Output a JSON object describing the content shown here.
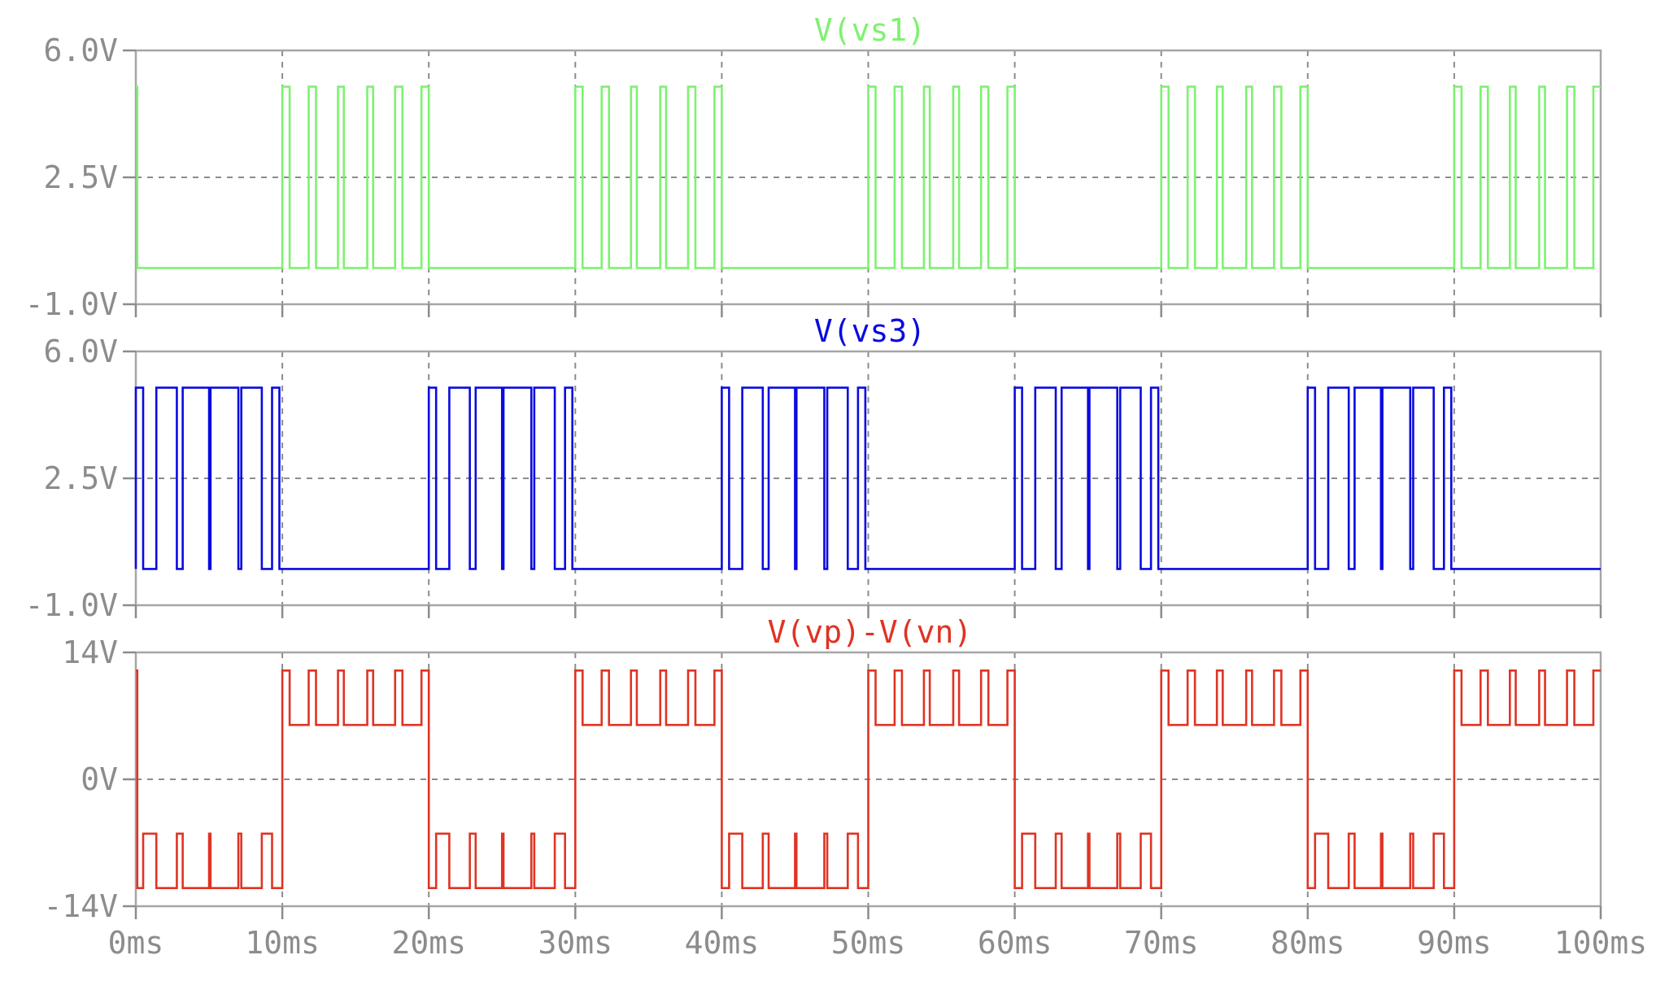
{
  "chart_data": [
    {
      "type": "line",
      "title": "V(vs1)",
      "color": "#7df270",
      "x_ticks": [
        "0ms",
        "10ms",
        "20ms",
        "30ms",
        "40ms",
        "50ms",
        "60ms",
        "70ms",
        "80ms",
        "90ms",
        "100ms"
      ],
      "xlim": [
        0,
        100
      ],
      "ylim": [
        -1.0,
        6.0
      ],
      "y_ticks": [
        {
          "value": 6.0,
          "label": "6.0V"
        },
        {
          "value": 2.5,
          "label": "2.5V"
        },
        {
          "value": -1.0,
          "label": "-1.0V"
        }
      ],
      "grid": true,
      "levels": {
        "low": 0,
        "high": 5
      },
      "pattern": {
        "period_ms": 20,
        "high_from_ms": 10,
        "high_to_ms": 20,
        "pulses_ms": [
          [
            0.0,
            0.5
          ],
          [
            1.8,
            2.3
          ],
          [
            3.8,
            4.2
          ],
          [
            5.8,
            6.2
          ],
          [
            7.7,
            8.2
          ],
          [
            9.5,
            10.0
          ]
        ]
      },
      "initial_spike_ms": [
        0.0,
        0.1
      ]
    },
    {
      "type": "line",
      "title": "V(vs3)",
      "color": "#0a0ae0",
      "x_ticks": [
        "0ms",
        "10ms",
        "20ms",
        "30ms",
        "40ms",
        "50ms",
        "60ms",
        "70ms",
        "80ms",
        "90ms",
        "100ms"
      ],
      "xlim": [
        0,
        100
      ],
      "ylim": [
        -1.0,
        6.0
      ],
      "y_ticks": [
        {
          "value": 6.0,
          "label": "6.0V"
        },
        {
          "value": 2.5,
          "label": "2.5V"
        },
        {
          "value": -1.0,
          "label": "-1.0V"
        }
      ],
      "grid": true,
      "levels": {
        "low": 0,
        "high": 5
      },
      "pattern": {
        "period_ms": 20,
        "high_from_ms": 0,
        "high_to_ms": 10,
        "pulses_ms": [
          [
            0.0,
            0.5
          ],
          [
            1.4,
            2.8
          ],
          [
            3.2,
            5.0
          ],
          [
            5.1,
            7.0
          ],
          [
            7.2,
            8.6
          ],
          [
            9.3,
            9.8
          ]
        ]
      }
    },
    {
      "type": "line",
      "title": "V(vp)-V(vn)",
      "color": "#e03323",
      "x_ticks": [
        "0ms",
        "10ms",
        "20ms",
        "30ms",
        "40ms",
        "50ms",
        "60ms",
        "70ms",
        "80ms",
        "90ms",
        "100ms"
      ],
      "xlim": [
        0,
        100
      ],
      "ylim": [
        -14,
        14
      ],
      "y_ticks": [
        {
          "value": 14,
          "label": "14V"
        },
        {
          "value": 0,
          "label": "0V"
        },
        {
          "value": -14,
          "label": "-14V"
        }
      ],
      "grid": true,
      "negative_half": {
        "base": -12,
        "pulse": -6,
        "pulses_ms": [
          [
            0.5,
            1.4
          ],
          [
            2.8,
            3.2
          ],
          [
            5.0,
            5.1
          ],
          [
            7.0,
            7.2
          ],
          [
            8.6,
            9.3
          ]
        ]
      },
      "positive_half": {
        "base": 6,
        "pulse": 12,
        "pulses_ms": [
          [
            0.0,
            0.5
          ],
          [
            1.8,
            2.3
          ],
          [
            3.8,
            4.2
          ],
          [
            5.8,
            6.2
          ],
          [
            7.7,
            8.2
          ],
          [
            9.5,
            10.0
          ]
        ]
      },
      "initial_spike": 12
    }
  ]
}
